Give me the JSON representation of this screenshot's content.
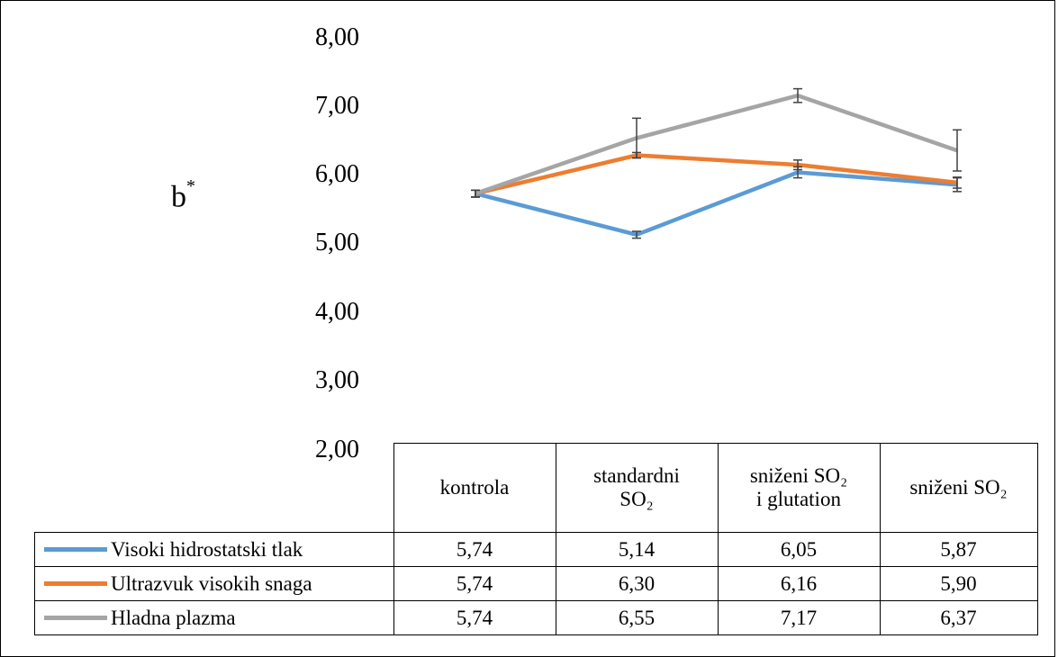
{
  "chart_data": {
    "type": "line",
    "title": "",
    "xlabel": "",
    "ylabel": "b",
    "ylabel_sup": "*",
    "ylim": [
      2,
      8
    ],
    "yticks": [
      "8,00",
      "7,00",
      "6,00",
      "5,00",
      "4,00",
      "3,00",
      "2,00"
    ],
    "categories": [
      {
        "line1": "kontrola",
        "line2": ""
      },
      {
        "line1": "standardni",
        "line2": "SO₂"
      },
      {
        "line1": "sniženi SO₂",
        "line2": "i glutation"
      },
      {
        "line1": "sniženi SO₂",
        "line2": ""
      }
    ],
    "series": [
      {
        "name": "Visoki hidrostatski tlak",
        "color": "#5b9bd5",
        "values": [
          5.74,
          5.14,
          6.05,
          5.87
        ],
        "error": [
          0.05,
          0.05,
          0.08,
          0.1
        ],
        "labels": [
          "5,74",
          "5,14",
          "6,05",
          "5,87"
        ]
      },
      {
        "name": "Ultrazvuk visokih snaga",
        "color": "#ed7d31",
        "values": [
          5.74,
          6.3,
          6.16,
          5.9
        ],
        "error": [
          0.05,
          0.04,
          0.07,
          0.08
        ],
        "labels": [
          "5,74",
          "6,30",
          "6,16",
          "5,90"
        ]
      },
      {
        "name": "Hladna plazma",
        "color": "#a5a5a5",
        "values": [
          5.74,
          6.55,
          7.17,
          6.37
        ],
        "error": [
          0.05,
          0.29,
          0.1,
          0.3
        ],
        "labels": [
          "5,74",
          "6,55",
          "7,17",
          "6,37"
        ]
      }
    ]
  }
}
